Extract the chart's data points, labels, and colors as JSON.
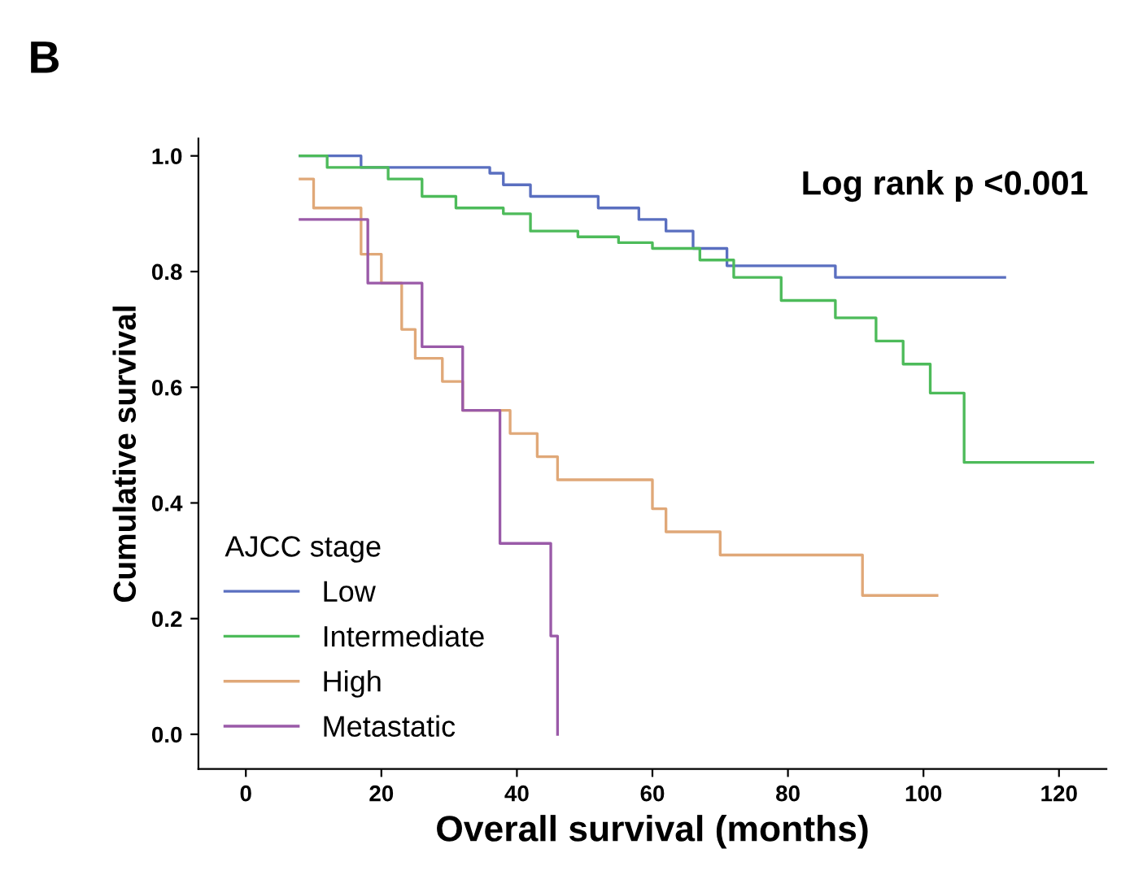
{
  "chart_data": {
    "type": "step",
    "title": "B",
    "xlabel": "Overall survival (months)",
    "ylabel": "Cumulative survival",
    "legend_title": "AJCC stage",
    "annotations": [
      "Log rank p <0.001"
    ],
    "series": [
      {
        "name": "Low",
        "color": "#5a6fc0",
        "x": [
          8,
          17,
          36,
          38,
          42,
          52,
          58,
          62,
          66,
          71,
          87,
          112
        ],
        "values": [
          1.0,
          0.98,
          0.97,
          0.95,
          0.93,
          0.91,
          0.89,
          0.87,
          0.84,
          0.81,
          0.79,
          0.79
        ]
      },
      {
        "name": "Intermediate",
        "color": "#4dbb5a",
        "x": [
          8,
          12,
          21,
          26,
          31,
          38,
          42,
          49,
          55,
          60,
          67,
          72,
          79,
          87,
          93,
          97,
          101,
          106,
          125
        ],
        "values": [
          1.0,
          0.98,
          0.96,
          0.93,
          0.91,
          0.9,
          0.87,
          0.86,
          0.85,
          0.84,
          0.82,
          0.79,
          0.75,
          0.72,
          0.68,
          0.64,
          0.59,
          0.47,
          0.47
        ]
      },
      {
        "name": "High",
        "color": "#e0a878",
        "x": [
          8,
          10,
          17,
          20,
          23,
          25,
          29,
          32,
          39,
          43,
          46,
          60,
          62,
          70,
          91,
          102
        ],
        "values": [
          0.96,
          0.91,
          0.83,
          0.78,
          0.7,
          0.65,
          0.61,
          0.56,
          0.52,
          0.48,
          0.44,
          0.39,
          0.35,
          0.31,
          0.24,
          0.24
        ]
      },
      {
        "name": "Metastatic",
        "color": "#9a5aa8",
        "x": [
          8,
          18,
          26,
          32,
          37.5,
          45,
          46
        ],
        "values": [
          0.89,
          0.78,
          0.67,
          0.56,
          0.33,
          0.17,
          0.0
        ]
      }
    ],
    "xlim": [
      -7,
      127
    ],
    "ylim": [
      -0.06,
      1.03
    ],
    "xticks": [
      0,
      20,
      40,
      60,
      80,
      100,
      120
    ],
    "yticks": [
      {
        "value": 0,
        "label": "0.0"
      },
      {
        "value": 0.2,
        "label": "0.2"
      },
      {
        "value": 0.4,
        "label": "0.4"
      },
      {
        "value": 0.6,
        "label": "0.6"
      },
      {
        "value": 0.8,
        "label": "0.8"
      },
      {
        "value": 1.0,
        "label": "1.0"
      }
    ],
    "legend": "bottom left",
    "grid": false
  }
}
